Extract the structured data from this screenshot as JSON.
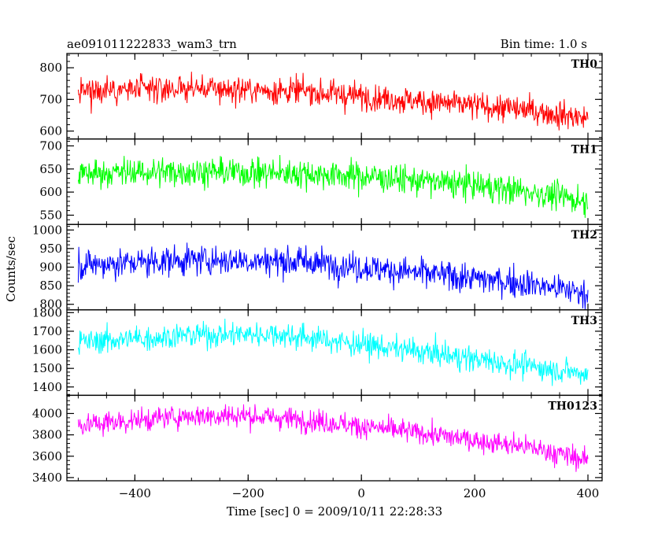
{
  "header": {
    "left_title": "ae091011222833_wam3_trn",
    "right_title": "Bin time: 1.0 s"
  },
  "chart_data": {
    "type": "line",
    "title": "ae091011222833_wam3_trn",
    "subtitle": "Bin time: 1.0 s",
    "xlabel": "Time [sec] 0 = 2009/10/11 22:28:33",
    "ylabel": "Counts/sec",
    "xlim": [
      -520,
      425
    ],
    "x_ticks": [
      -400,
      -200,
      0,
      200,
      400
    ],
    "x_tick_labels": [
      "−400",
      "−200",
      "0",
      "200",
      "400"
    ],
    "x_range_data": [
      -500,
      400
    ],
    "grid": false,
    "panels": [
      {
        "name": "TH0",
        "color": "#ff0000",
        "ylim": [
          575,
          845
        ],
        "yticks": [
          600,
          700,
          800
        ],
        "trend": [
          [
            -500,
            725
          ],
          [
            -300,
            735
          ],
          [
            -100,
            725
          ],
          [
            0,
            710
          ],
          [
            100,
            695
          ],
          [
            200,
            680
          ],
          [
            300,
            665
          ],
          [
            400,
            640
          ]
        ],
        "noise": 30
      },
      {
        "name": "TH1",
        "color": "#00ff00",
        "ylim": [
          530,
          715
        ],
        "yticks": [
          550,
          600,
          650,
          700
        ],
        "trend": [
          [
            -500,
            640
          ],
          [
            -300,
            645
          ],
          [
            -100,
            640
          ],
          [
            0,
            635
          ],
          [
            100,
            625
          ],
          [
            200,
            615
          ],
          [
            300,
            600
          ],
          [
            400,
            580
          ]
        ],
        "noise": 22
      },
      {
        "name": "TH2",
        "color": "#0000ff",
        "ylim": [
          785,
          1015
        ],
        "yticks": [
          800,
          850,
          900,
          950,
          1000
        ],
        "trend": [
          [
            -500,
            905
          ],
          [
            -300,
            920
          ],
          [
            -100,
            915
          ],
          [
            0,
            900
          ],
          [
            100,
            885
          ],
          [
            200,
            870
          ],
          [
            300,
            855
          ],
          [
            400,
            830
          ]
        ],
        "noise": 28
      },
      {
        "name": "TH3",
        "color": "#00ffff",
        "ylim": [
          1355,
          1815
        ],
        "yticks": [
          1400,
          1500,
          1600,
          1700,
          1800
        ],
        "trend": [
          [
            -500,
            1640
          ],
          [
            -300,
            1680
          ],
          [
            -150,
            1685
          ],
          [
            0,
            1630
          ],
          [
            100,
            1590
          ],
          [
            200,
            1550
          ],
          [
            300,
            1510
          ],
          [
            400,
            1470
          ]
        ],
        "noise": 48
      },
      {
        "name": "TH0123",
        "color": "#ff00ff",
        "ylim": [
          3370,
          4170
        ],
        "yticks": [
          3400,
          3600,
          3800,
          4000
        ],
        "trend": [
          [
            -500,
            3890
          ],
          [
            -300,
            3980
          ],
          [
            -200,
            3980
          ],
          [
            -100,
            3940
          ],
          [
            0,
            3880
          ],
          [
            100,
            3820
          ],
          [
            200,
            3750
          ],
          [
            300,
            3680
          ],
          [
            400,
            3560
          ]
        ],
        "noise": 75
      }
    ]
  }
}
